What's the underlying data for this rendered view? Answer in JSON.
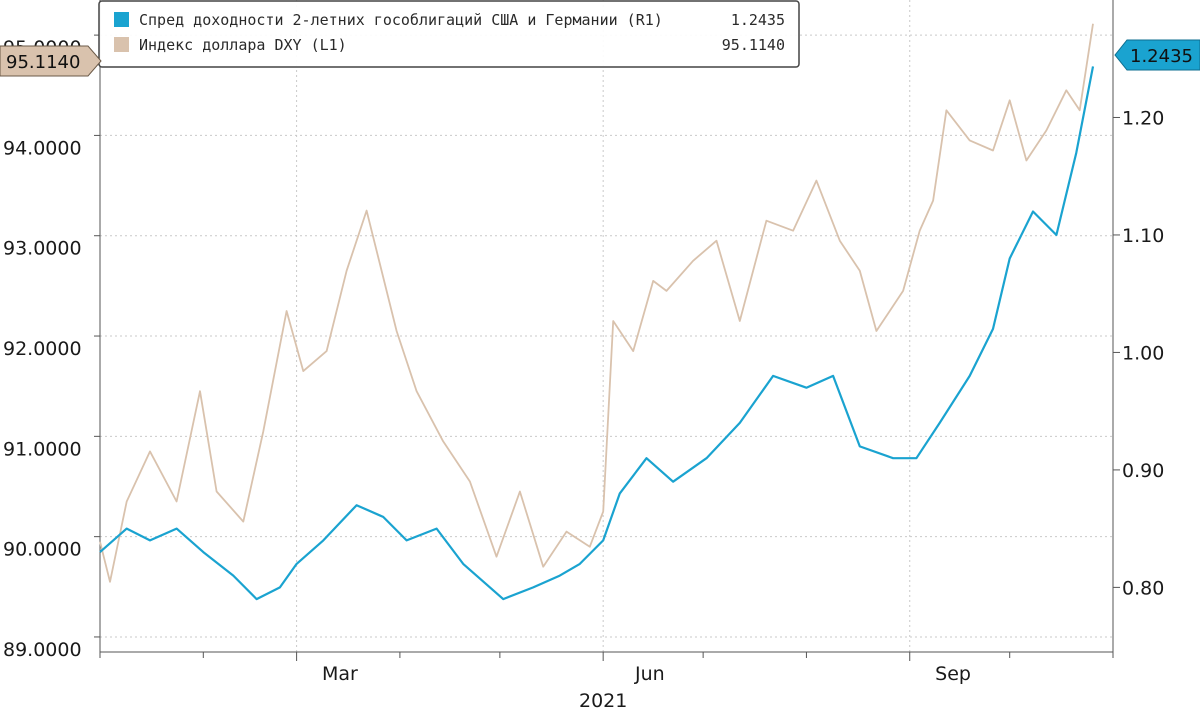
{
  "chart_data": {
    "type": "line",
    "x_axis": {
      "tick_labels": [
        "Mar",
        "Jun",
        "Sep"
      ],
      "year_label": "2021",
      "range": [
        "2021-01-01",
        "2021-11-01"
      ]
    },
    "left_axis": {
      "tick_labels": [
        "89.0000",
        "90.0000",
        "91.0000",
        "92.0000",
        "93.0000",
        "94.0000",
        "95.0000"
      ],
      "ylim": [
        88.85,
        95.35
      ]
    },
    "right_axis": {
      "tick_labels": [
        "0.80",
        "0.90",
        "1.00",
        "1.10",
        "1.20"
      ],
      "ylim": [
        0.745,
        1.3
      ]
    },
    "grid": true,
    "legend_position": "top-left",
    "series": [
      {
        "name": "Спред доходности 2-летних гособлигаций США и Германии (R1)",
        "legend_value": "1.2435",
        "axis": "right",
        "color": "#1aa3d0",
        "last_value_label": "1.2435",
        "x": [
          "2021-01-01",
          "2021-01-09",
          "2021-01-16",
          "2021-01-24",
          "2021-02-01",
          "2021-02-10",
          "2021-02-17",
          "2021-02-24",
          "2021-03-01",
          "2021-03-09",
          "2021-03-19",
          "2021-03-27",
          "2021-04-03",
          "2021-04-12",
          "2021-04-20",
          "2021-05-02",
          "2021-05-11",
          "2021-05-19",
          "2021-05-25",
          "2021-06-01",
          "2021-06-06",
          "2021-06-14",
          "2021-06-22",
          "2021-07-02",
          "2021-07-12",
          "2021-07-22",
          "2021-08-01",
          "2021-08-09",
          "2021-08-17",
          "2021-08-27",
          "2021-09-03",
          "2021-09-10",
          "2021-09-19",
          "2021-09-26",
          "2021-10-01",
          "2021-10-08",
          "2021-10-15",
          "2021-10-21",
          "2021-10-26"
        ],
        "values": [
          0.83,
          0.85,
          0.84,
          0.85,
          0.83,
          0.81,
          0.79,
          0.8,
          0.82,
          0.84,
          0.87,
          0.86,
          0.84,
          0.85,
          0.82,
          0.79,
          0.8,
          0.81,
          0.82,
          0.84,
          0.88,
          0.91,
          0.89,
          0.91,
          0.94,
          0.98,
          0.97,
          0.98,
          0.92,
          0.91,
          0.91,
          0.94,
          0.98,
          1.02,
          1.08,
          1.12,
          1.1,
          1.17,
          1.2435
        ]
      },
      {
        "name": "Индекс доллара DXY (L1)",
        "legend_value": "95.1140",
        "axis": "left",
        "color": "#d9c2ad",
        "last_value_label": "95.1140",
        "x": [
          "2021-01-01",
          "2021-01-04",
          "2021-01-09",
          "2021-01-16",
          "2021-01-24",
          "2021-01-31",
          "2021-02-05",
          "2021-02-13",
          "2021-02-19",
          "2021-02-26",
          "2021-03-03",
          "2021-03-10",
          "2021-03-16",
          "2021-03-22",
          "2021-03-31",
          "2021-04-06",
          "2021-04-14",
          "2021-04-22",
          "2021-04-30",
          "2021-05-07",
          "2021-05-14",
          "2021-05-21",
          "2021-05-28",
          "2021-06-01",
          "2021-06-04",
          "2021-06-10",
          "2021-06-16",
          "2021-06-20",
          "2021-06-28",
          "2021-07-05",
          "2021-07-12",
          "2021-07-20",
          "2021-07-28",
          "2021-08-04",
          "2021-08-11",
          "2021-08-17",
          "2021-08-22",
          "2021-08-30",
          "2021-09-04",
          "2021-09-08",
          "2021-09-12",
          "2021-09-19",
          "2021-09-26",
          "2021-10-01",
          "2021-10-06",
          "2021-10-12",
          "2021-10-18",
          "2021-10-22",
          "2021-10-26"
        ],
        "values": [
          89.95,
          89.55,
          90.35,
          90.85,
          90.35,
          91.45,
          90.45,
          90.15,
          91.05,
          92.25,
          91.65,
          91.85,
          92.65,
          93.25,
          92.05,
          91.45,
          90.95,
          90.55,
          89.8,
          90.45,
          89.7,
          90.05,
          89.9,
          90.25,
          92.15,
          91.85,
          92.55,
          92.45,
          92.75,
          92.95,
          92.15,
          93.15,
          93.05,
          93.55,
          92.95,
          92.65,
          92.05,
          92.45,
          93.05,
          93.35,
          94.25,
          93.95,
          93.85,
          94.35,
          93.75,
          94.05,
          94.45,
          94.25,
          95.114
        ]
      }
    ]
  }
}
